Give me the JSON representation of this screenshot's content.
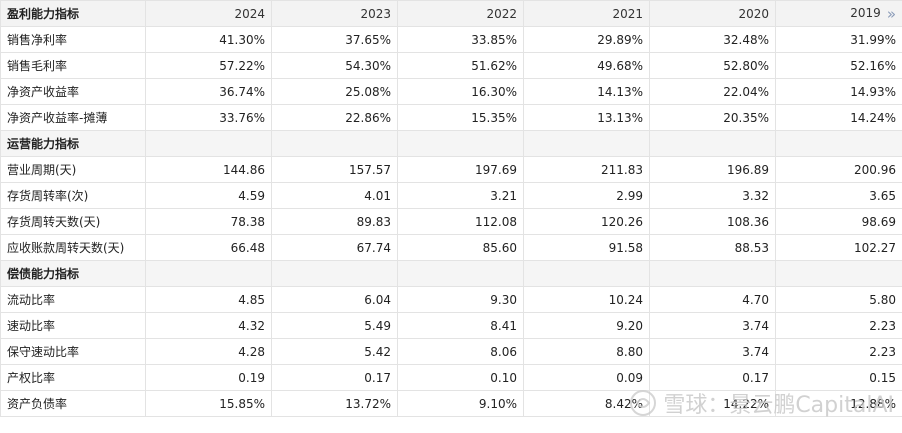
{
  "header": {
    "first": "盈利能力指标",
    "years": [
      "2024",
      "2023",
      "2022",
      "2021",
      "2020",
      "2019"
    ],
    "more_icon": "»"
  },
  "sections": [
    {
      "title": "盈利能力指标",
      "rows": [
        {
          "label": "销售净利率",
          "values": [
            "41.30%",
            "37.65%",
            "33.85%",
            "29.89%",
            "32.48%",
            "31.99%"
          ]
        },
        {
          "label": "销售毛利率",
          "values": [
            "57.22%",
            "54.30%",
            "51.62%",
            "49.68%",
            "52.80%",
            "52.16%"
          ]
        },
        {
          "label": "净资产收益率",
          "values": [
            "36.74%",
            "25.08%",
            "16.30%",
            "14.13%",
            "22.04%",
            "14.93%"
          ]
        },
        {
          "label": "净资产收益率-摊薄",
          "values": [
            "33.76%",
            "22.86%",
            "15.35%",
            "13.13%",
            "20.35%",
            "14.24%"
          ]
        }
      ]
    },
    {
      "title": "运营能力指标",
      "rows": [
        {
          "label": "营业周期(天)",
          "values": [
            "144.86",
            "157.57",
            "197.69",
            "211.83",
            "196.89",
            "200.96"
          ]
        },
        {
          "label": "存货周转率(次)",
          "values": [
            "4.59",
            "4.01",
            "3.21",
            "2.99",
            "3.32",
            "3.65"
          ]
        },
        {
          "label": "存货周转天数(天)",
          "values": [
            "78.38",
            "89.83",
            "112.08",
            "120.26",
            "108.36",
            "98.69"
          ]
        },
        {
          "label": "应收账款周转天数(天)",
          "values": [
            "66.48",
            "67.74",
            "85.60",
            "91.58",
            "88.53",
            "102.27"
          ]
        }
      ]
    },
    {
      "title": "偿债能力指标",
      "rows": [
        {
          "label": "流动比率",
          "values": [
            "4.85",
            "6.04",
            "9.30",
            "10.24",
            "4.70",
            "5.80"
          ]
        },
        {
          "label": "速动比率",
          "values": [
            "4.32",
            "5.49",
            "8.41",
            "9.20",
            "3.74",
            "2.23"
          ]
        },
        {
          "label": "保守速动比率",
          "values": [
            "4.28",
            "5.42",
            "8.06",
            "8.80",
            "3.74",
            "2.23"
          ]
        },
        {
          "label": "产权比率",
          "values": [
            "0.19",
            "0.17",
            "0.10",
            "0.09",
            "0.17",
            "0.15"
          ]
        },
        {
          "label": "资产负债率",
          "values": [
            "15.85%",
            "13.72%",
            "9.10%",
            "8.42%",
            "14.22%",
            "12.88%"
          ]
        }
      ]
    }
  ],
  "watermark": "雪球：景云鹏CapitalAI"
}
